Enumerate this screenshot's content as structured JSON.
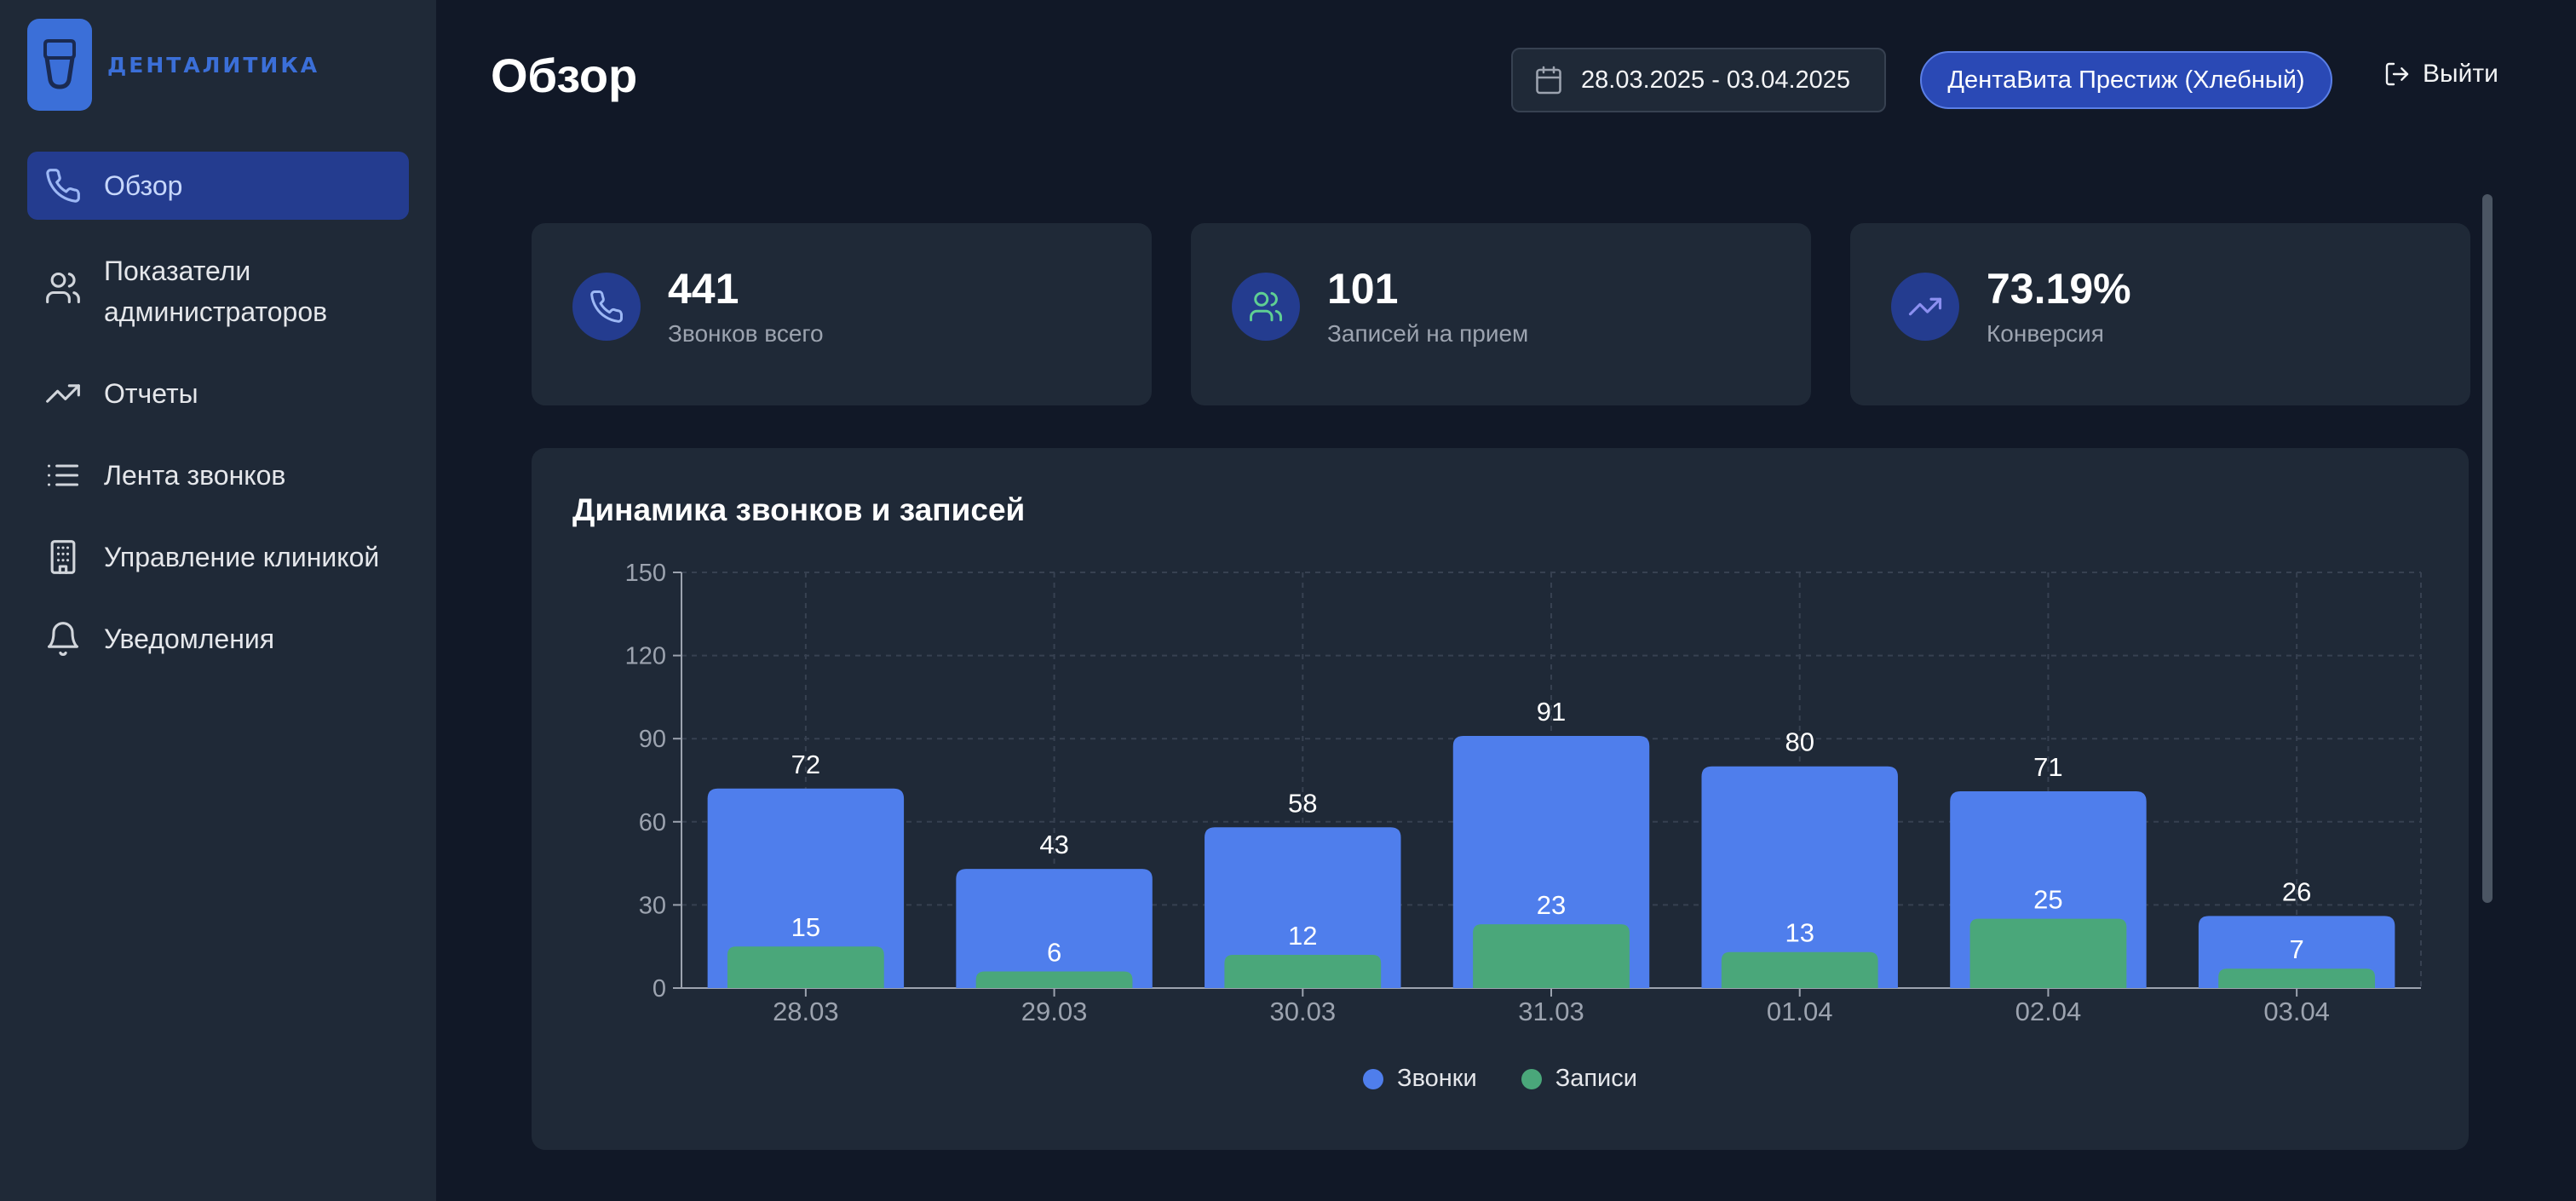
{
  "app": {
    "logo_text": "ДЕНТАЛИТИКА"
  },
  "sidebar": {
    "items": [
      {
        "label": "Обзор",
        "icon": "phone-icon",
        "active": true
      },
      {
        "label": "Показатели администраторов",
        "icon": "users-icon"
      },
      {
        "label": "Отчеты",
        "icon": "trending-up-icon"
      },
      {
        "label": "Лента звонков",
        "icon": "list-icon"
      },
      {
        "label": "Управление клиникой",
        "icon": "building-icon"
      },
      {
        "label": "Уведомления",
        "icon": "bell-icon"
      }
    ]
  },
  "header": {
    "title": "Обзор",
    "date_range": "28.03.2025 - 03.04.2025",
    "clinic": "ДентаВита Престиж (Хлебный)",
    "logout": "Выйти"
  },
  "stats": [
    {
      "value": "441",
      "caption": "Звонков всего",
      "icon": "phone-icon"
    },
    {
      "value": "101",
      "caption": "Записей на прием",
      "icon": "users-icon"
    },
    {
      "value": "73.19%",
      "caption": "Конверсия",
      "icon": "trending-up-icon"
    }
  ],
  "panel": {
    "title": "Динамика звонков и записей"
  },
  "colors": {
    "calls": "#4f7eec",
    "records": "#4aa77a",
    "accent": "#243c8f"
  },
  "chart_data": {
    "type": "bar",
    "categories": [
      "28.03",
      "29.03",
      "30.03",
      "31.03",
      "01.04",
      "02.04",
      "03.04"
    ],
    "series": [
      {
        "name": "Звонки",
        "values": [
          72,
          43,
          58,
          91,
          80,
          71,
          26
        ]
      },
      {
        "name": "Записи",
        "values": [
          15,
          6,
          12,
          23,
          13,
          25,
          7
        ]
      }
    ],
    "yticks": [
      0,
      30,
      60,
      90,
      120,
      150
    ],
    "ylim": [
      0,
      150
    ],
    "grid": true,
    "legend": "bottom-center"
  }
}
